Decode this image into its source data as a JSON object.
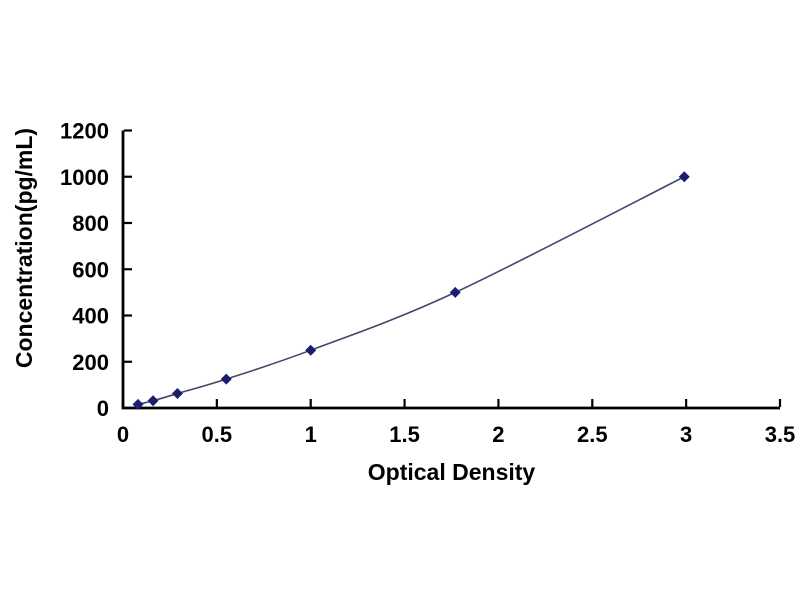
{
  "chart_data": {
    "type": "scatter",
    "title": "",
    "xlabel": "Optical Density",
    "ylabel": "Concentration(pg/mL)",
    "x": [
      0.08,
      0.16,
      0.29,
      0.55,
      1.0,
      1.77,
      2.99
    ],
    "y": [
      15.6,
      31.2,
      62.5,
      125,
      250,
      500,
      1000
    ],
    "xlim": [
      0,
      3.5
    ],
    "ylim": [
      0,
      1200
    ],
    "x_ticks": [
      "0",
      "0.5",
      "1",
      "1.5",
      "2",
      "2.5",
      "3",
      "3.5"
    ],
    "y_ticks": [
      "0",
      "200",
      "400",
      "600",
      "800",
      "1000",
      "1200"
    ],
    "grid": false,
    "legend": "none",
    "marker": "diamond",
    "line_style": "smooth",
    "colors": {
      "line": "#45456b",
      "marker": "#1c1c70",
      "axis": "#000000",
      "text": "#000000",
      "background": "#ffffff"
    }
  }
}
